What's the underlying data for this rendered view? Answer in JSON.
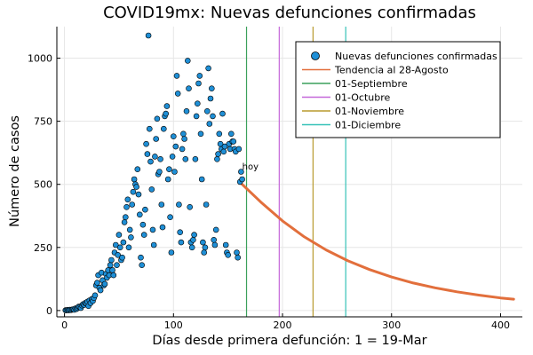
{
  "chart_data": {
    "type": "scatter",
    "title": "COVID19mx: Nuevas defunciones confirmadas",
    "xlabel": "Días desde primera defunción: 1 = 19-Mar",
    "ylabel": "Número de casos",
    "xlim": [
      -7,
      420
    ],
    "ylim": [
      -25,
      1125
    ],
    "xticks": [
      0,
      100,
      200,
      300,
      400
    ],
    "yticks": [
      0,
      250,
      500,
      750,
      1000
    ],
    "grid": true,
    "legend_position": "top-right",
    "series": [
      {
        "name": "Nuevas defunciones confirmadas",
        "kind": "scatter",
        "color": "#1f8fd6",
        "x": [
          1,
          2,
          3,
          4,
          5,
          6,
          7,
          8,
          9,
          10,
          11,
          12,
          13,
          14,
          15,
          16,
          17,
          18,
          19,
          20,
          21,
          22,
          23,
          24,
          25,
          26,
          27,
          28,
          29,
          30,
          31,
          32,
          33,
          34,
          35,
          36,
          37,
          38,
          39,
          40,
          41,
          42,
          43,
          44,
          45,
          46,
          47,
          48,
          49,
          50,
          51,
          52,
          53,
          54,
          55,
          56,
          57,
          58,
          59,
          60,
          61,
          62,
          63,
          64,
          65,
          66,
          67,
          68,
          69,
          70,
          71,
          72,
          73,
          74,
          75,
          76,
          77,
          78,
          79,
          80,
          81,
          82,
          83,
          84,
          85,
          86,
          87,
          88,
          89,
          90,
          91,
          92,
          93,
          94,
          95,
          96,
          97,
          98,
          99,
          100,
          101,
          102,
          103,
          104,
          105,
          106,
          107,
          108,
          109,
          110,
          111,
          112,
          113,
          114,
          115,
          116,
          117,
          118,
          119,
          120,
          121,
          122,
          123,
          124,
          125,
          126,
          127,
          128,
          129,
          130,
          131,
          132,
          133,
          134,
          135,
          136,
          137,
          138,
          139,
          140,
          141,
          142,
          143,
          144,
          145,
          146,
          147,
          148,
          149,
          150,
          151,
          152,
          153,
          154,
          155,
          156,
          157,
          158,
          159,
          160,
          161,
          162,
          163
        ],
        "y": [
          1,
          1,
          2,
          1,
          3,
          2,
          4,
          5,
          3,
          8,
          6,
          10,
          15,
          14,
          10,
          20,
          25,
          22,
          30,
          28,
          35,
          18,
          40,
          30,
          45,
          38,
          50,
          60,
          100,
          110,
          140,
          90,
          80,
          150,
          120,
          100,
          105,
          145,
          130,
          160,
          140,
          180,
          200,
          160,
          140,
          230,
          260,
          180,
          220,
          300,
          250,
          200,
          210,
          270,
          350,
          370,
          410,
          440,
          250,
          320,
          290,
          420,
          470,
          520,
          500,
          490,
          560,
          460,
          380,
          210,
          180,
          340,
          300,
          400,
          660,
          620,
          1090,
          720,
          590,
          480,
          320,
          260,
          610,
          680,
          760,
          540,
          550,
          600,
          420,
          330,
          720,
          770,
          780,
          810,
          520,
          560,
          370,
          230,
          610,
          690,
          550,
          650,
          930,
          860,
          420,
          310,
          270,
          640,
          700,
          680,
          600,
          790,
          990,
          880,
          410,
          270,
          250,
          280,
          300,
          600,
          770,
          820,
          900,
          930,
          700,
          520,
          270,
          230,
          250,
          420,
          790,
          960,
          740,
          840,
          880,
          770,
          280,
          260,
          320,
          600,
          620,
          700,
          660,
          640,
          780,
          630,
          650,
          260,
          230,
          220,
          660,
          640,
          700,
          670,
          670,
          640,
          630,
          230,
          210,
          640,
          510,
          550,
          520
        ]
      },
      {
        "name": "Tendencia al 28-Agosto",
        "kind": "line",
        "color": "#e26f3c",
        "x": [
          163,
          180,
          200,
          220,
          240,
          260,
          280,
          300,
          320,
          340,
          360,
          380,
          400,
          412
        ],
        "y": [
          500,
          430,
          355,
          292,
          240,
          197,
          162,
          133,
          109,
          90,
          74,
          61,
          50,
          45
        ]
      }
    ],
    "vlines": [
      {
        "name": "01-Septiembre",
        "x": 167,
        "color": "#3ba05b"
      },
      {
        "name": "01-Octubre",
        "x": 197,
        "color": "#c468d9"
      },
      {
        "name": "01-Noviembre",
        "x": 228,
        "color": "#b89a2e"
      },
      {
        "name": "01-Diciembre",
        "x": 258,
        "color": "#35c2b8"
      }
    ],
    "annotations": [
      {
        "text": "hoy",
        "x": 163,
        "y": 573
      }
    ]
  }
}
